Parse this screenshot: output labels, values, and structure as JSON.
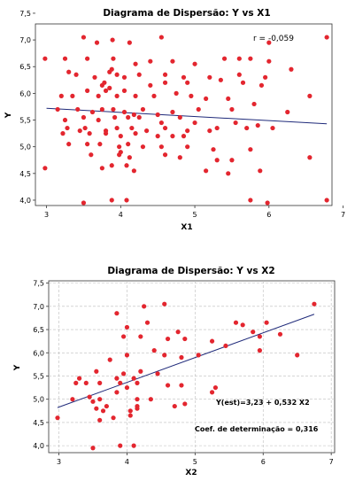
{
  "chart_data": [
    {
      "type": "scatter",
      "title": "Diagrama de Dispersão: Y vs X1",
      "xlabel": "X1",
      "ylabel": "Y",
      "xlim": [
        2.85,
        6.85
      ],
      "ylim": [
        3.9,
        7.3
      ],
      "xticks": [
        "3",
        "4",
        "5",
        "6",
        "7"
      ],
      "yticks": [
        "4,0",
        "4,5",
        "5,0",
        "5,5",
        "6,0",
        "6,5",
        "7,0",
        "7,5"
      ],
      "grid": false,
      "annotations": [
        {
          "id": "r",
          "text": "r = -0,059"
        }
      ],
      "fit_line": {
        "x": [
          3.0,
          6.78
        ],
        "y": [
          5.72,
          5.43
        ]
      },
      "points": {
        "x": [
          3.5,
          3.68,
          3.89,
          4.12,
          4.55,
          5.75,
          6.0,
          6.78,
          2.98,
          3.25,
          3.55,
          3.9,
          4.2,
          4.4,
          4.7,
          5.0,
          5.4,
          5.6,
          6.0,
          6.3,
          3.3,
          3.4,
          3.65,
          3.85,
          3.88,
          3.95,
          4.05,
          4.25,
          4.6,
          4.85,
          5.2,
          5.6,
          5.95,
          3.75,
          3.78,
          3.85,
          4.4,
          4.6,
          4.9,
          5.35,
          5.65,
          5.9,
          6.55,
          3.2,
          3.35,
          3.55,
          3.7,
          3.8,
          3.95,
          4.05,
          4.2,
          4.45,
          4.75,
          4.95,
          5.15,
          5.45,
          5.8,
          6.25,
          3.15,
          3.42,
          3.62,
          3.75,
          3.9,
          4.05,
          4.18,
          4.3,
          4.5,
          4.7,
          5.05,
          5.5,
          3.25,
          3.5,
          3.7,
          3.92,
          4.1,
          4.25,
          4.55,
          4.8,
          5.0,
          5.3,
          5.55,
          5.85,
          3.28,
          3.52,
          3.8,
          3.95,
          4.15,
          4.35,
          4.6,
          4.9,
          5.2,
          5.7,
          6.05,
          3.22,
          3.45,
          3.58,
          3.8,
          4.0,
          4.2,
          4.5,
          4.7,
          4.85,
          3.3,
          3.55,
          3.72,
          3.98,
          4.1,
          4.3,
          4.55,
          4.9,
          5.25,
          5.75,
          3.6,
          3.98,
          4.0,
          4.12,
          4.6,
          4.8,
          5.3,
          5.5,
          6.55,
          2.98,
          3.75,
          3.88,
          4.08,
          4.18,
          5.15,
          5.45,
          5.88,
          3.5,
          3.88,
          4.08,
          5.75,
          5.98,
          6.78
        ],
        "y": [
          7.05,
          6.95,
          7.0,
          6.95,
          7.05,
          6.65,
          6.95,
          7.05,
          6.65,
          6.65,
          6.65,
          6.65,
          6.55,
          6.6,
          6.6,
          6.55,
          6.65,
          6.65,
          6.6,
          6.45,
          6.4,
          6.35,
          6.3,
          6.4,
          6.45,
          6.35,
          6.3,
          6.35,
          6.35,
          6.3,
          6.3,
          6.35,
          6.3,
          6.15,
          6.2,
          6.1,
          6.15,
          6.2,
          6.2,
          6.25,
          6.2,
          6.15,
          5.95,
          5.95,
          5.95,
          6.05,
          5.95,
          6.05,
          5.95,
          6.05,
          5.95,
          5.95,
          6.0,
          5.95,
          5.9,
          5.9,
          5.8,
          5.65,
          5.7,
          5.7,
          5.65,
          5.7,
          5.7,
          5.65,
          5.6,
          5.7,
          5.6,
          5.65,
          5.7,
          5.7,
          5.5,
          5.55,
          5.5,
          5.55,
          5.55,
          5.55,
          5.45,
          5.55,
          5.45,
          5.35,
          5.45,
          5.4,
          5.35,
          5.35,
          5.3,
          5.35,
          5.35,
          5.3,
          5.35,
          5.3,
          5.3,
          5.35,
          5.35,
          5.25,
          5.3,
          5.25,
          5.25,
          5.2,
          5.25,
          5.2,
          5.2,
          5.2,
          5.05,
          5.05,
          5.05,
          5.0,
          5.05,
          5.0,
          5.0,
          5.0,
          4.95,
          4.95,
          4.85,
          4.85,
          4.9,
          4.8,
          4.85,
          4.8,
          4.75,
          4.75,
          4.8,
          4.6,
          4.6,
          4.65,
          4.65,
          4.55,
          4.55,
          4.5,
          4.55,
          3.95,
          4.0,
          4.0,
          4.0,
          3.95,
          4.0
        ]
      }
    },
    {
      "type": "scatter",
      "title": "Diagrama de Dispersão: Y vs X2",
      "xlabel": "X2",
      "ylabel": "Y",
      "xlim": [
        2.85,
        7.05
      ],
      "ylim": [
        3.85,
        7.55
      ],
      "xticks": [
        "3",
        "4",
        "5",
        "6",
        "7"
      ],
      "yticks": [
        "4,0",
        "4,5",
        "5,0",
        "5,5",
        "6,0",
        "6,5",
        "7,0",
        "7,5"
      ],
      "grid": true,
      "annotations": [
        {
          "id": "equation",
          "text": "Y(est)=3,23 + 0,532 X2"
        },
        {
          "id": "r2",
          "text": "Coef. de determinação = 0,316"
        }
      ],
      "fit_line": {
        "x": [
          2.98,
          6.75
        ],
        "y": [
          4.82,
          6.83
        ]
      },
      "points": {
        "x": [
          6.75,
          4.55,
          4.25,
          3.85,
          4.3,
          4.0,
          4.75,
          5.7,
          6.05,
          5.85,
          6.25,
          5.6,
          3.95,
          4.2,
          4.85,
          4.6,
          5.25,
          5.95,
          5.45,
          4.4,
          4.55,
          5.05,
          4.8,
          4.0,
          3.75,
          3.55,
          3.3,
          3.4,
          3.25,
          3.6,
          3.9,
          3.85,
          4.1,
          3.95,
          4.45,
          4.2,
          5.95,
          6.5,
          4.15,
          4.6,
          4.8,
          5.3,
          5.25,
          4.35,
          4.0,
          4.15,
          3.85,
          3.6,
          3.45,
          3.2,
          3.5,
          3.7,
          4.7,
          4.15,
          2.98,
          3.6,
          3.8,
          4.05,
          4.85,
          3.55,
          3.65,
          4.05,
          4.15,
          3.5,
          3.9,
          4.1
        ],
        "y": [
          7.05,
          7.05,
          7.0,
          6.85,
          6.65,
          6.55,
          6.45,
          6.6,
          6.65,
          6.45,
          6.4,
          6.65,
          6.35,
          6.35,
          6.3,
          6.3,
          6.25,
          6.35,
          6.15,
          6.05,
          5.95,
          5.95,
          5.9,
          5.95,
          5.85,
          5.6,
          5.45,
          5.35,
          5.35,
          5.35,
          5.35,
          5.45,
          5.45,
          5.55,
          5.55,
          5.6,
          6.05,
          5.95,
          5.35,
          5.3,
          5.3,
          5.25,
          5.15,
          5.0,
          5.25,
          5.0,
          5.15,
          5.0,
          5.05,
          5.0,
          4.95,
          4.85,
          4.85,
          4.85,
          4.6,
          4.55,
          4.6,
          4.65,
          4.9,
          4.8,
          4.75,
          4.75,
          4.8,
          3.95,
          4.0,
          4.0
        ]
      }
    }
  ]
}
